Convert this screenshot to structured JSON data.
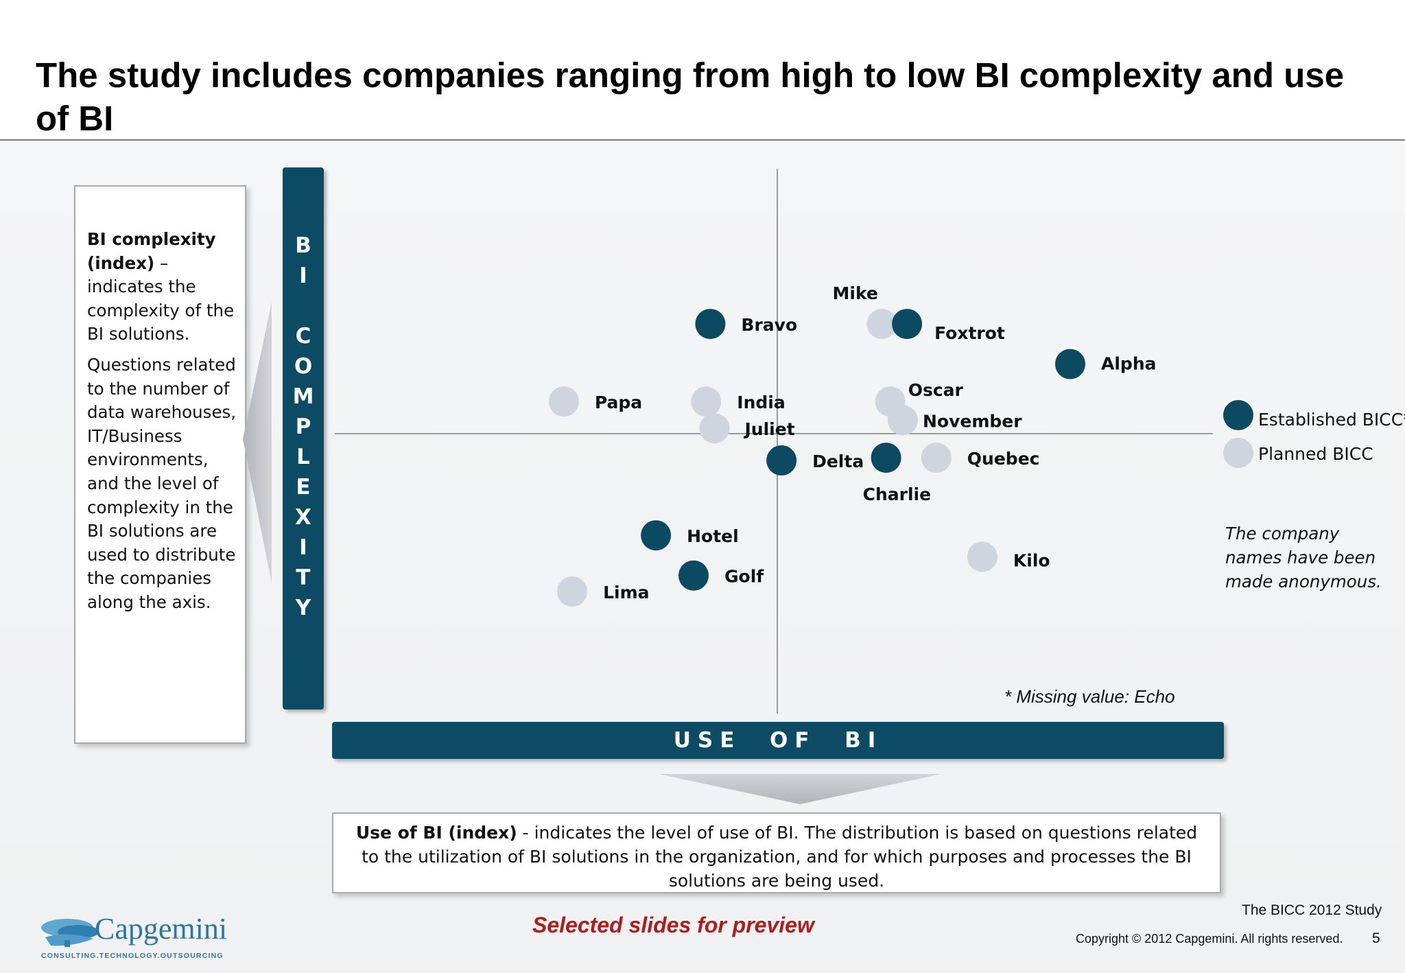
{
  "title": "The study includes companies ranging from high to low BI complexity and use of BI",
  "left_box": {
    "term": "BI complexity (index)",
    "dash": " –",
    "definition": "indicates the complexity of the BI solutions.",
    "details": "Questions related to the number of data warehouses, IT/Business environments, and the level of complexity in the BI solutions are used to distribute the companies along the axis."
  },
  "y_axis_label": "BI COMPLEXITY",
  "x_axis_label": "USE OF BI",
  "bottom_box": {
    "term": "Use of BI (index)",
    "definition": " - indicates the level of use of BI. The distribution is based on questions related to the utilization of BI solutions in the organization, and for which purposes and processes the BI solutions are being used."
  },
  "legend": {
    "established": "Established BICC*",
    "planned": "Planned BICC"
  },
  "colors": {
    "established": "#0b4a60",
    "planned": "#cfd5de",
    "bar": "#0d4a63",
    "highlight_text": "#b01c1c"
  },
  "chart_data": {
    "type": "scatter",
    "xlabel": "USE OF BI",
    "ylabel": "BI COMPLEXITY",
    "note": "Quadrant scatter; axes have no tick values. Values are approximate positions on a -1..1 index where 0 is the crossing of the quadrant lines.",
    "xlim": [
      -1,
      1
    ],
    "ylim": [
      -1,
      1
    ],
    "series": [
      {
        "name": "Established BICC*",
        "points": [
          {
            "label": "Bravo",
            "x": -0.16,
            "y": 0.41
          },
          {
            "label": "Foxtrot",
            "x": 0.31,
            "y": 0.41
          },
          {
            "label": "Alpha",
            "x": 0.7,
            "y": 0.26
          },
          {
            "label": "Delta",
            "x": 0.01,
            "y": -0.1
          },
          {
            "label": "Charlie",
            "x": 0.26,
            "y": -0.09
          },
          {
            "label": "Hotel",
            "x": -0.29,
            "y": -0.38
          },
          {
            "label": "Golf",
            "x": -0.2,
            "y": -0.53
          }
        ]
      },
      {
        "name": "Planned BICC",
        "points": [
          {
            "label": "Mike",
            "x": 0.25,
            "y": 0.41
          },
          {
            "label": "Papa",
            "x": -0.51,
            "y": 0.12
          },
          {
            "label": "India",
            "x": -0.17,
            "y": 0.12
          },
          {
            "label": "Juliet",
            "x": -0.15,
            "y": 0.02
          },
          {
            "label": "Oscar",
            "x": 0.27,
            "y": 0.12
          },
          {
            "label": "November",
            "x": 0.3,
            "y": 0.05
          },
          {
            "label": "Quebec",
            "x": 0.38,
            "y": -0.09
          },
          {
            "label": "Kilo",
            "x": 0.49,
            "y": -0.46
          },
          {
            "label": "Lima",
            "x": -0.49,
            "y": -0.59
          }
        ]
      }
    ]
  },
  "note_italic": "The company names have been made anonymous.",
  "missing_value": "* Missing value: Echo",
  "preview": "Selected slides for preview",
  "study": "The BICC 2012 Study",
  "copyright": "Copyright © 2012 Capgemini. All rights reserved.",
  "page_number": "5",
  "logo": {
    "name": "Capgemini",
    "tagline": "CONSULTING.TECHNOLOGY.OUTSOURCING"
  }
}
